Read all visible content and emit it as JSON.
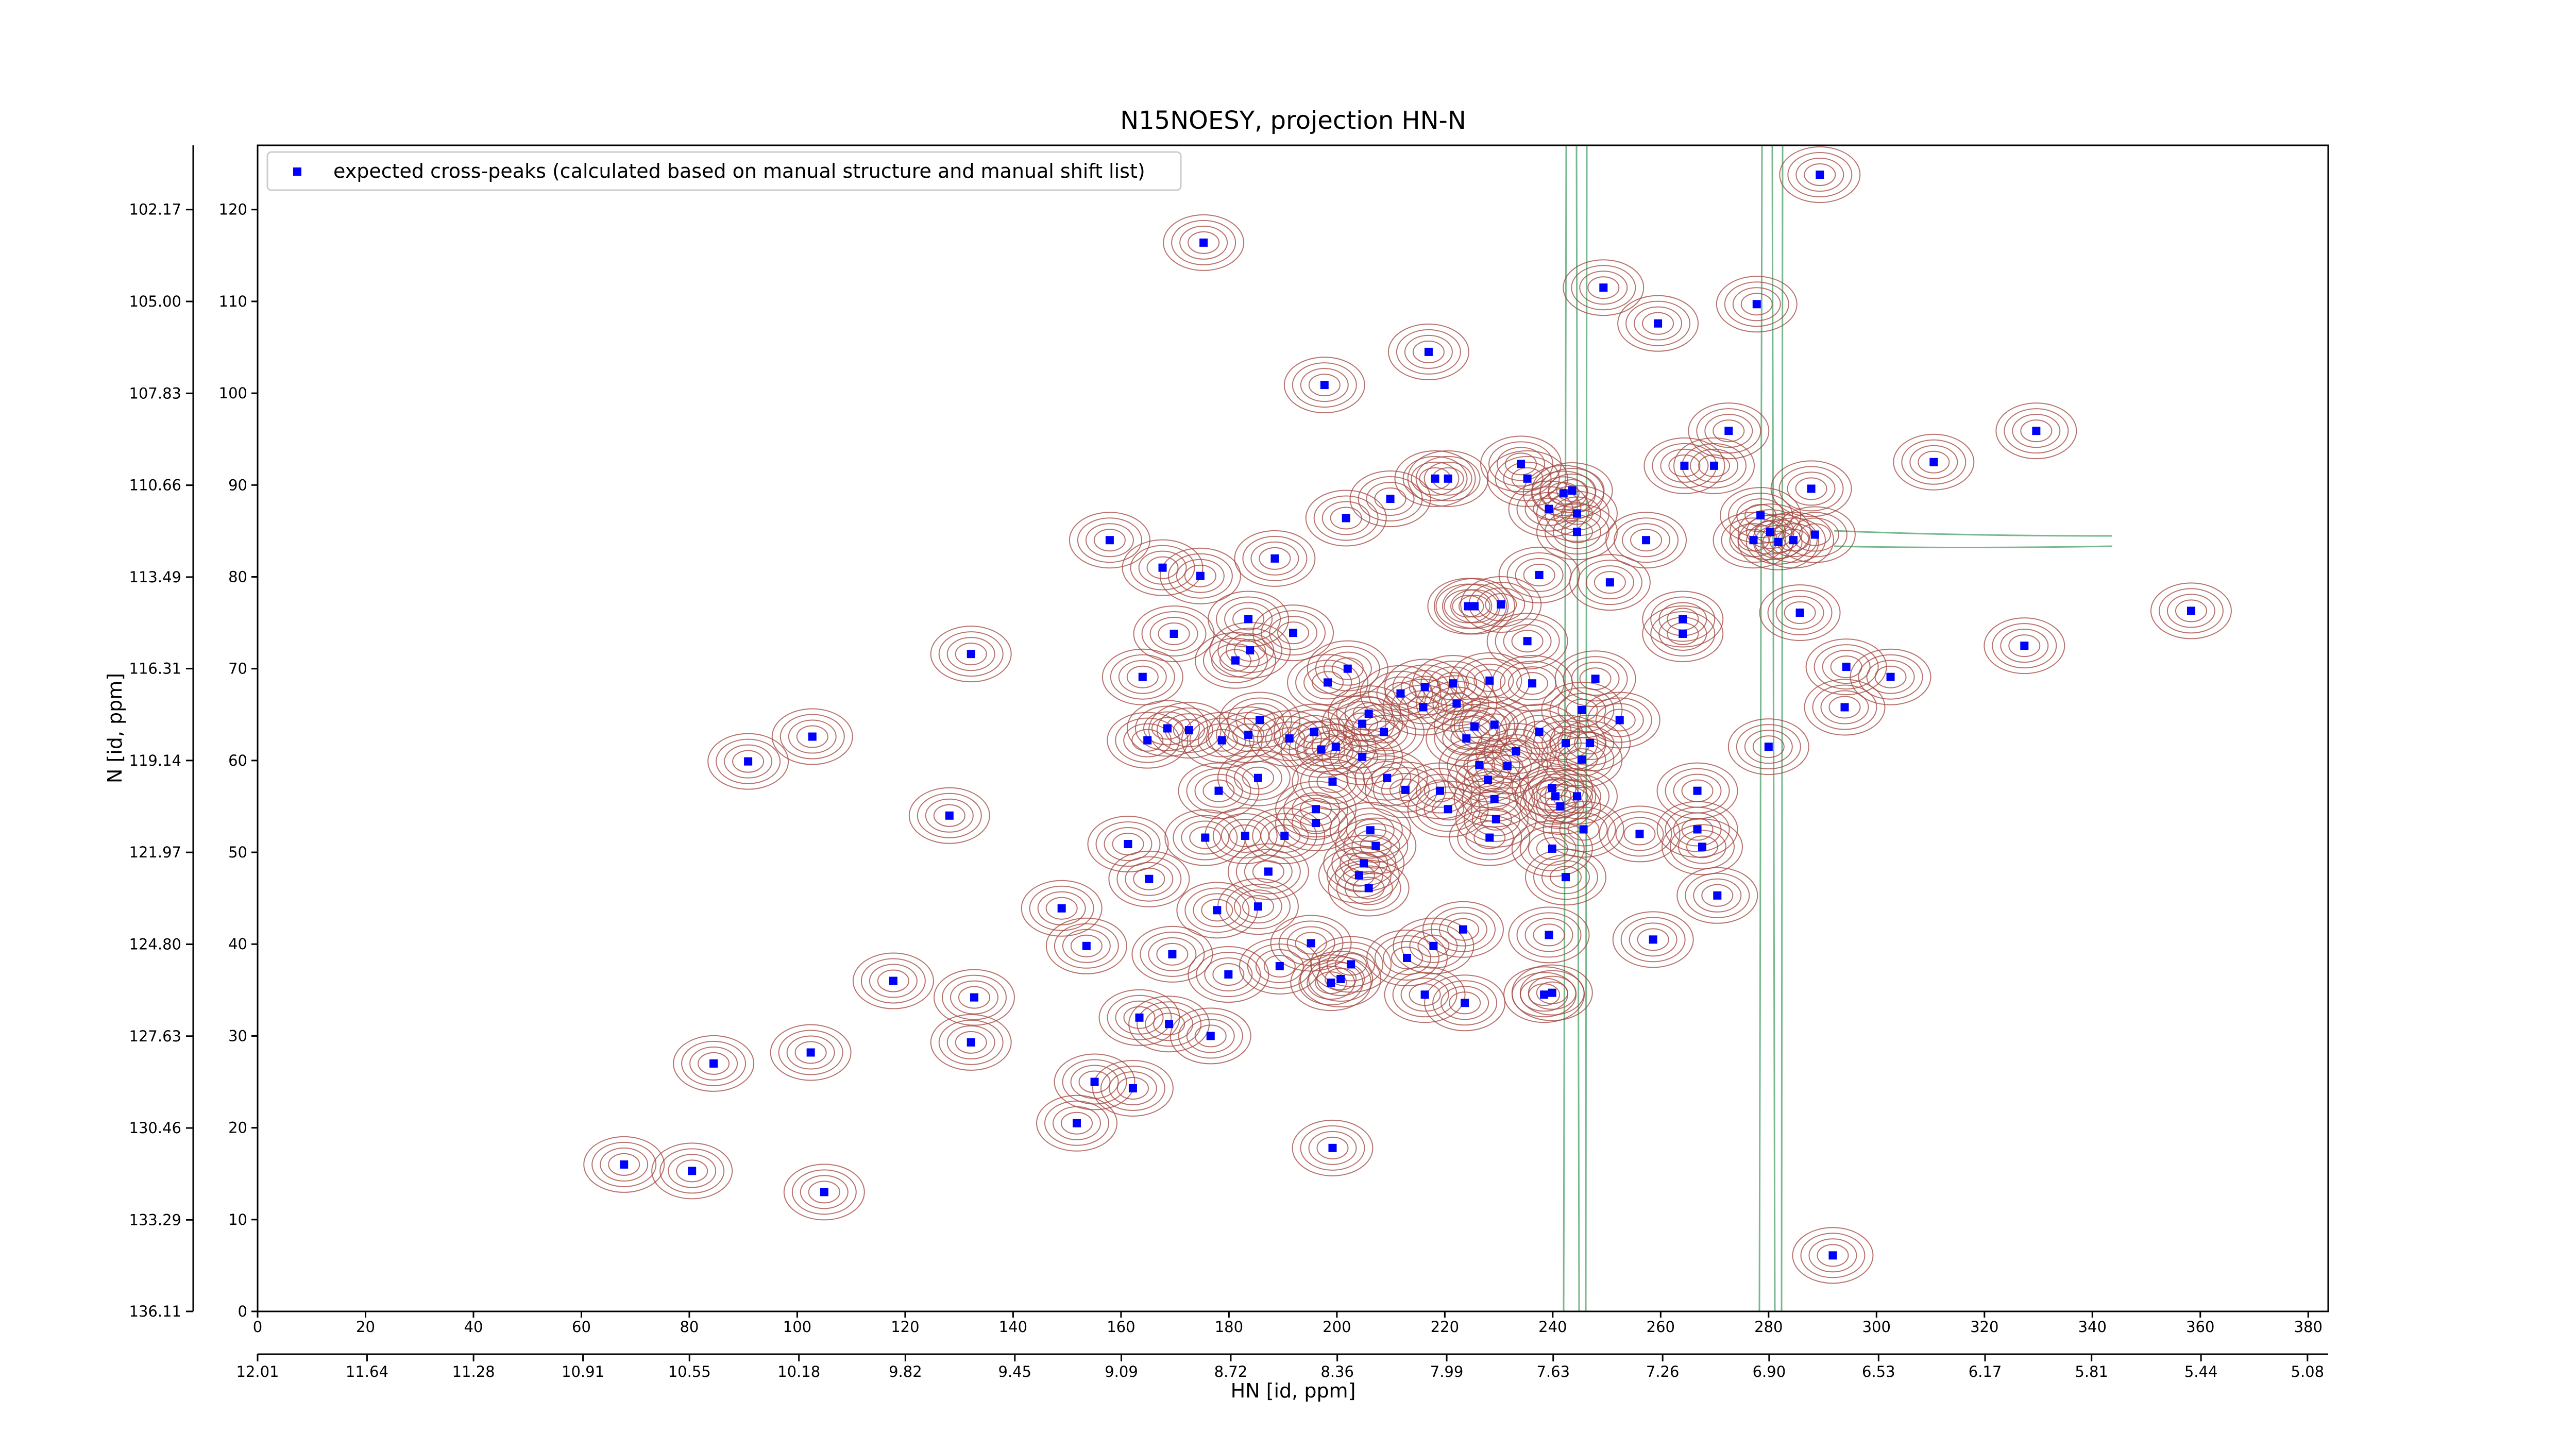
{
  "chart_data": {
    "type": "scatter",
    "title": "N15NOESY, projection HN-N",
    "xlabel": "HN [id, ppm]",
    "ylabel": "N [id, ppm]",
    "xlim": [
      0,
      383.7
    ],
    "xticks": [
      0,
      20,
      40,
      60,
      80,
      100,
      120,
      140,
      160,
      180,
      200,
      220,
      240,
      260,
      280,
      300,
      320,
      340,
      360,
      380
    ],
    "ylim": [
      0,
      127
    ],
    "yticks": [
      0,
      10,
      20,
      30,
      40,
      50,
      60,
      70,
      80,
      90,
      100,
      110,
      120
    ],
    "x2lim": [
      12.01,
      5.01
    ],
    "x2ticks": [
      12.01,
      11.64,
      11.28,
      10.91,
      10.55,
      10.18,
      9.82,
      9.45,
      9.09,
      8.72,
      8.36,
      7.99,
      7.63,
      7.26,
      {
        "value": 6.9,
        "label": "6.90"
      },
      6.53,
      6.17,
      5.81,
      5.44,
      5.08
    ],
    "y2lim": [
      136.11,
      100.19
    ],
    "y2ticks": [
      136.11,
      133.29,
      130.46,
      127.63,
      {
        "value": 124.8,
        "label": "124.80"
      },
      121.97,
      119.14,
      116.31,
      113.49,
      110.66,
      107.83,
      {
        "value": 105,
        "label": "105.00"
      },
      102.17
    ],
    "legend": "upper left",
    "series": [
      {
        "name": "expected cross-peaks (calculated based on manual structure and manual shift list)",
        "color": "#0000ff",
        "x": [
          175.3,
          249.4,
          259.5,
          277.8,
          289.5,
          217,
          197.7,
          329.6,
          310.6,
          272.6,
          264.4,
          269.9,
          234.1,
          235.3,
          218.2,
          220.6,
          209.9,
          201.7,
          157.9,
          167.7,
          174.7,
          188.5,
          239.3,
          242,
          243.6,
          244.5,
          244.5,
          237.5,
          250.6,
          257.3,
          264.1,
          264.1,
          277.2,
          278.5,
          280.3,
          281.8,
          284.6,
          287.9,
          288.6,
          285.8,
          327.4,
          358.3,
          183.6,
          191.9,
          169.8,
          164,
          132.2,
          181.2,
          183.9,
          202,
          198.3,
          216.3,
          221.5,
          224.3,
          225.5,
          230.4,
          235.3,
          236.2,
          228.3,
          222.2,
          211.8,
          225.5,
          229.2,
          247.9,
          245.4,
          246.9,
          245.4,
          244.5,
          240.5,
          242.4,
          237.5,
          233.2,
          231.6,
          226.4,
          224,
          216,
          208.7,
          205.9,
          204.7,
          199.8,
          197.1,
          195.8,
          191.2,
          185.7,
          183.6,
          178.7,
          168.6,
          164.9,
          172.6,
          185.4,
          178.1,
          212.7,
          209.3,
          204.7,
          199.2,
          196.1,
          196.1,
          190.3,
          183,
          175.6,
          161.3,
          165.2,
          187.3,
          219.1,
          220.6,
          228,
          229.5,
          228.3,
          229.2,
          239.9,
          241.4,
          239.9,
          242.4,
          245.7,
          252.4,
          256.1,
          266.8,
          267.7,
          270.5,
          266.8,
          280,
          294.4,
          294.1,
          302.6,
          258.6,
          239.3,
          238.4,
          239.9,
          223.4,
          217.9,
          213,
          202.6,
          200.7,
          198.9,
          195.2,
          189.4,
          185.4,
          177.8,
          169.5,
          179.9,
          176.6,
          168.9,
          163.4,
          153.6,
          149,
          128.2,
          132.2,
          132.8,
          117.8,
          84.5,
          102.5,
          90.9,
          102.8,
          155.1,
          162.2,
          151.8,
          199.2,
          204.1,
          207.2,
          206.2,
          205,
          205.9,
          216.3,
          223.7,
          80.5,
          67.9,
          105,
          291.9
        ],
        "values": [
          116.4,
          111.5,
          107.6,
          109.7,
          123.8,
          104.5,
          100.9,
          95.9,
          92.5,
          95.9,
          92.1,
          92.1,
          92.3,
          90.7,
          90.7,
          90.7,
          88.5,
          86.4,
          84,
          81,
          80.1,
          82,
          87.4,
          89.1,
          89.4,
          86.9,
          84.9,
          80.2,
          79.4,
          84,
          75.4,
          73.8,
          84,
          86.7,
          84.9,
          83.8,
          84,
          89.6,
          84.6,
          76.1,
          72.5,
          76.3,
          75.4,
          73.9,
          73.8,
          69.1,
          71.6,
          70.9,
          72,
          70,
          68.5,
          68,
          68.4,
          76.8,
          76.8,
          77,
          73,
          68.4,
          68.7,
          66.2,
          67.3,
          63.7,
          63.9,
          68.9,
          65.5,
          61.9,
          60.1,
          56.1,
          56.1,
          61.9,
          63.1,
          61,
          59.4,
          59.5,
          62.4,
          65.8,
          63.1,
          65.1,
          64,
          61.5,
          61.2,
          63.1,
          62.4,
          64.4,
          62.8,
          62.2,
          63.5,
          62.2,
          63.3,
          58.1,
          56.7,
          56.8,
          58.1,
          60.4,
          57.7,
          54.7,
          53.2,
          51.8,
          51.8,
          51.6,
          50.9,
          47.1,
          47.9,
          56.7,
          54.7,
          57.9,
          53.6,
          51.6,
          55.8,
          57,
          55,
          50.4,
          47.3,
          52.5,
          64.4,
          52,
          56.7,
          50.6,
          45.3,
          52.5,
          61.5,
          70.2,
          65.8,
          69.1,
          40.5,
          41,
          34.5,
          34.7,
          41.6,
          39.8,
          38.5,
          37.8,
          36.2,
          35.8,
          40.1,
          37.6,
          44.1,
          43.7,
          38.9,
          36.7,
          30,
          31.3,
          32,
          39.8,
          43.9,
          54,
          29.3,
          34.2,
          36,
          27,
          28.2,
          59.9,
          62.6,
          25,
          24.3,
          20.5,
          17.8,
          47.5,
          50.7,
          52.4,
          48.8,
          46.1,
          34.5,
          33.6,
          15.3,
          16,
          13,
          6.1
        ]
      }
    ]
  }
}
